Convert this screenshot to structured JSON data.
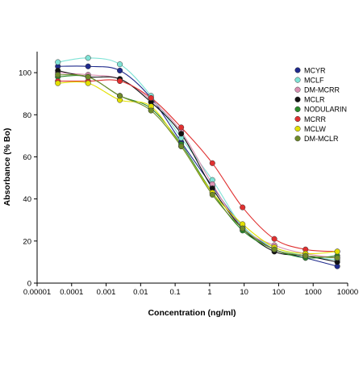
{
  "chart_data": {
    "type": "scatter",
    "title": "",
    "xlabel": "Concentration (ng/ml)",
    "ylabel": "Absorbance (% Bo)",
    "x_scale": "log",
    "xlim": [
      1e-05,
      10000
    ],
    "ylim": [
      0,
      110
    ],
    "x_ticks": [
      1e-05,
      0.0001,
      0.001,
      0.01,
      0.1,
      1,
      10,
      100,
      1000,
      10000
    ],
    "x_tick_labels": [
      "0.00001",
      "0.0001",
      "0.001",
      "0.01",
      "0.1",
      "1",
      "10",
      "100",
      "1000",
      "10000"
    ],
    "y_ticks": [
      0,
      20,
      40,
      60,
      80,
      100
    ],
    "y_tick_labels": [
      "0",
      "20",
      "40",
      "60",
      "80",
      "100"
    ],
    "grid": false,
    "legend_position": "right",
    "x": [
      4e-05,
      0.0003,
      0.0025,
      0.02,
      0.15,
      1.2,
      9,
      75,
      600,
      5000
    ],
    "series": [
      {
        "name": "MCYR",
        "color": "#1f2a8c",
        "values": [
          103,
          103,
          101,
          88,
          67,
          46,
          27,
          16,
          12,
          8
        ]
      },
      {
        "name": "MCLF",
        "color": "#7fe3d6",
        "values": [
          105,
          107,
          104,
          89,
          69,
          49,
          27,
          17,
          13,
          11
        ]
      },
      {
        "name": "DM-MCRR",
        "color": "#d98fb1",
        "values": [
          100,
          99,
          97,
          87,
          72,
          47,
          26,
          18,
          14,
          12
        ]
      },
      {
        "name": "MCLR",
        "color": "#111111",
        "values": [
          101,
          98,
          97,
          86,
          71,
          45,
          26,
          15,
          13,
          10
        ]
      },
      {
        "name": "NODULARIN",
        "color": "#2b8a2b",
        "values": [
          98,
          98,
          89,
          83,
          66,
          43,
          25,
          16,
          12,
          13
        ]
      },
      {
        "name": "MCRR",
        "color": "#e03030",
        "values": [
          96,
          96,
          96,
          88,
          74,
          57,
          36,
          21,
          16,
          15
        ]
      },
      {
        "name": "MCLW",
        "color": "#e3e000",
        "values": [
          95,
          95,
          87,
          84,
          65,
          43,
          28,
          17,
          14,
          15
        ]
      },
      {
        "name": "DM-MCLR",
        "color": "#6f8a2a",
        "values": [
          99,
          98,
          89,
          82,
          65,
          42,
          26,
          16,
          13,
          12
        ]
      }
    ]
  }
}
